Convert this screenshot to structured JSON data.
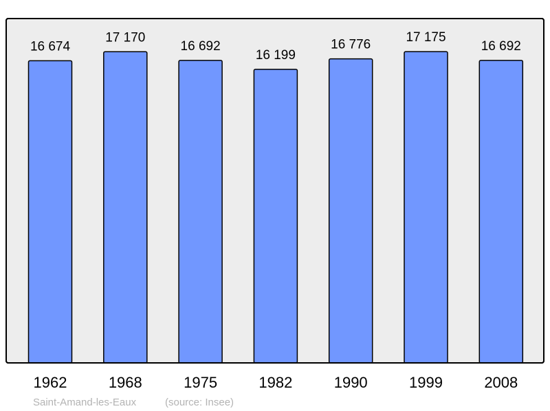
{
  "chart_data": {
    "type": "bar",
    "categories": [
      "1962",
      "1968",
      "1975",
      "1982",
      "1990",
      "1999",
      "2008"
    ],
    "values": [
      16674,
      17170,
      16692,
      16199,
      16776,
      17175,
      16692
    ],
    "value_labels": [
      "16 674",
      "17 170",
      "16 692",
      "16 199",
      "16 776",
      "17 175",
      "16 692"
    ],
    "title": "",
    "xlabel": "",
    "ylabel": "",
    "ylim": [
      0,
      19000
    ],
    "grid": false,
    "legend": "none",
    "caption_place": "Saint-Amand-les-Eaux",
    "caption_source": "(source: Insee)",
    "colors": {
      "bar": "#7197ff",
      "plot_background": "#ededed",
      "frame": "#000000",
      "caption": "#b3b3b3"
    }
  }
}
